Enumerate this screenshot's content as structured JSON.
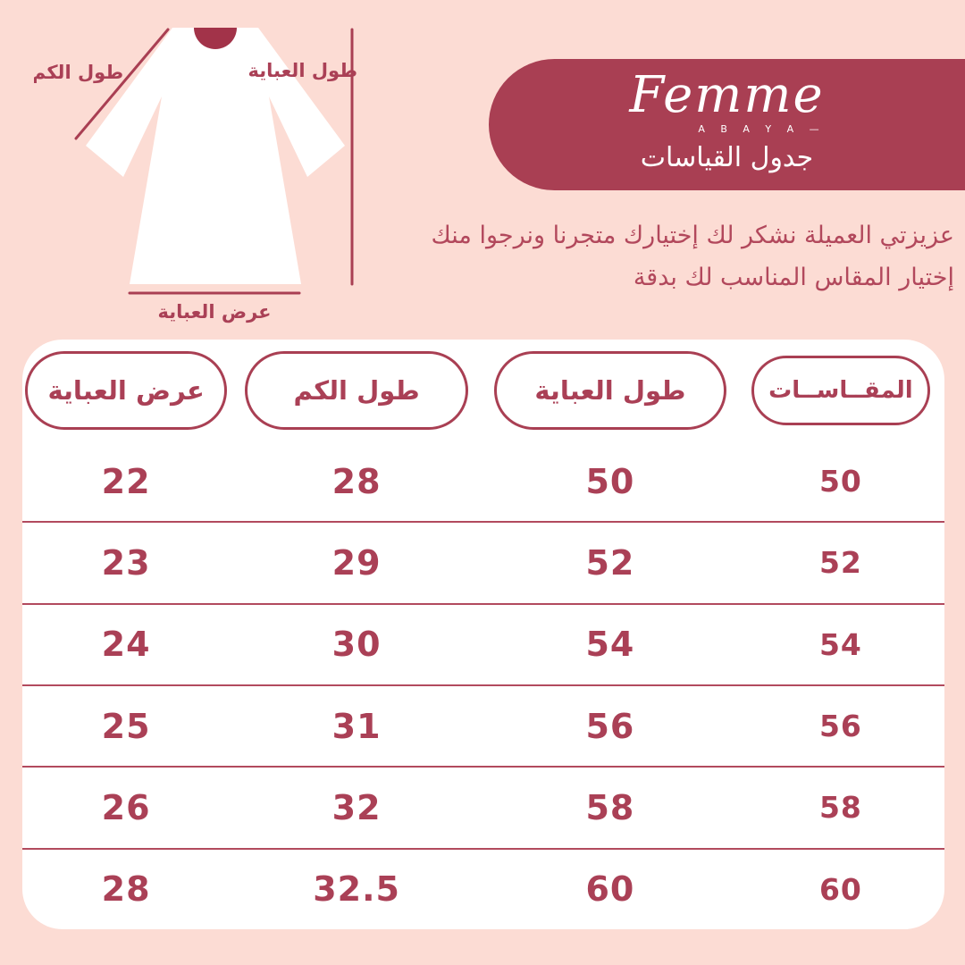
{
  "theme": {
    "background": "#fcdcd4",
    "maroon": "#a93f53",
    "neck_maroon": "#a23349",
    "text_maroon": "#aa4056",
    "card_white": "#ffffff"
  },
  "brand": {
    "name": "Femme",
    "subtitle": "A B A Y A —",
    "chart_title_ar": "جدول القياسات"
  },
  "intro": {
    "line1": "عزيزتي العميلة نشكر لك إختيارك متجرنا ونرجوا منك",
    "line2": "إختيار المقاس المناسب لك بدقة"
  },
  "diagram": {
    "labels": {
      "sleeve_length": "طول الكم",
      "abaya_length": "طول العباية",
      "abaya_width": "عرض العباية"
    }
  },
  "table": {
    "headers": [
      "المقــاســات",
      "طول العباية",
      "طول الكم",
      "عرض العباية"
    ],
    "rows": [
      {
        "size": "50",
        "length": "50",
        "sleeve": "28",
        "width": "22"
      },
      {
        "size": "52",
        "length": "52",
        "sleeve": "29",
        "width": "23"
      },
      {
        "size": "54",
        "length": "54",
        "sleeve": "30",
        "width": "24"
      },
      {
        "size": "56",
        "length": "56",
        "sleeve": "31",
        "width": "25"
      },
      {
        "size": "58",
        "length": "58",
        "sleeve": "32",
        "width": "26"
      },
      {
        "size": "60",
        "length": "60",
        "sleeve": "32.5",
        "width": "28"
      }
    ]
  },
  "chart_data": {
    "type": "table",
    "title": "جدول القياسات",
    "columns": [
      "المقاسات",
      "طول العباية",
      "طول الكم",
      "عرض العباية"
    ],
    "rows": [
      [
        50,
        50,
        28,
        22
      ],
      [
        52,
        52,
        29,
        23
      ],
      [
        54,
        54,
        30,
        24
      ],
      [
        56,
        56,
        31,
        25
      ],
      [
        58,
        58,
        32,
        26
      ],
      [
        60,
        60,
        32.5,
        28
      ]
    ],
    "notes": "RTL size chart: size, abaya length, sleeve length, abaya width"
  }
}
